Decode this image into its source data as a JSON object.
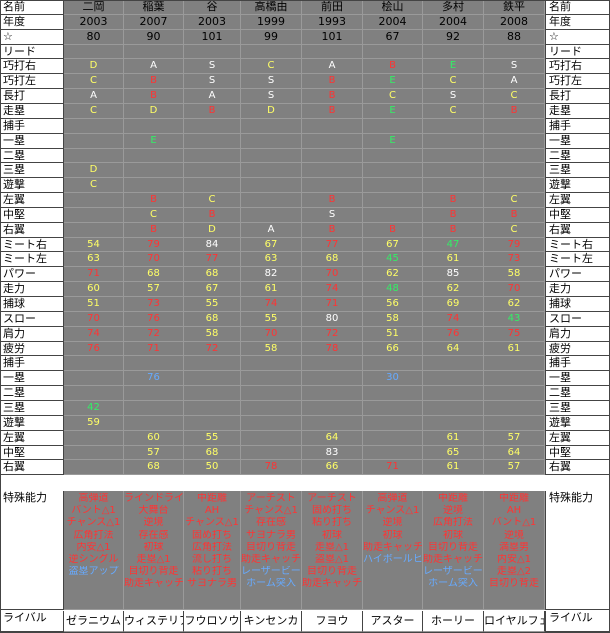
{
  "colors": {
    "W": "#ffffff",
    "Y": "#ffff66",
    "R": "#ff3333",
    "G": "#33ee66",
    "B": "#66aaff",
    "K": "#000000"
  },
  "row_labels": [
    "名前",
    "年度",
    "☆",
    "リード",
    "巧打右",
    "巧打左",
    "長打",
    "走塁",
    "捕手",
    "一塁",
    "二塁",
    "三塁",
    "遊撃",
    "左翼",
    "中堅",
    "右翼",
    "ミート右",
    "ミート左",
    "パワー",
    "走力",
    "捕球",
    "スロー",
    "肩力",
    "疲労",
    "捕手",
    "一塁",
    "二塁",
    "三塁",
    "遊撃",
    "左翼",
    "中堅",
    "右翼",
    "特殊能力",
    "ライバル"
  ],
  "players": [
    {
      "name": "二岡",
      "year": "2003",
      "star": "80",
      "grades": [
        [
          "D",
          "Y"
        ],
        [
          "C",
          "Y"
        ],
        [
          "A",
          "W"
        ],
        [
          "C",
          "Y"
        ]
      ],
      "def1": [
        [
          "",
          ""
        ],
        [
          "",
          ""
        ],
        [
          "",
          ""
        ],
        [
          "D",
          "Y"
        ],
        [
          "C",
          "Y"
        ],
        [
          "",
          ""
        ],
        [
          "",
          ""
        ],
        [
          "",
          ""
        ]
      ],
      "stats": [
        [
          "54",
          "Y"
        ],
        [
          "63",
          "Y"
        ],
        [
          "71",
          "R"
        ],
        [
          "60",
          "Y"
        ],
        [
          "51",
          "Y"
        ],
        [
          "70",
          "R"
        ],
        [
          "74",
          "R"
        ],
        [
          "76",
          "R"
        ]
      ],
      "def2": [
        [
          "",
          ""
        ],
        [
          "",
          ""
        ],
        [
          "",
          ""
        ],
        [
          "42",
          "G"
        ],
        [
          "59",
          "Y"
        ],
        [
          "",
          ""
        ],
        [
          "",
          ""
        ],
        [
          "",
          ""
        ]
      ],
      "special": [
        [
          "高弾道",
          "R"
        ],
        [
          "バント△1",
          "R"
        ],
        [
          "チャンス△1",
          "R"
        ],
        [
          "広角打法",
          "R"
        ],
        [
          "内安△1",
          "R"
        ],
        [
          "逆シングル",
          "R"
        ],
        [
          "盗塁アップ",
          "B"
        ]
      ],
      "rival": "ゼラニウム"
    },
    {
      "name": "稲葉",
      "year": "2007",
      "star": "90",
      "grades": [
        [
          "A",
          "W"
        ],
        [
          "B",
          "R"
        ],
        [
          "B",
          "R"
        ],
        [
          "D",
          "Y"
        ]
      ],
      "def1": [
        [
          "",
          ""
        ],
        [
          "E",
          "G"
        ],
        [
          "",
          ""
        ],
        [
          "",
          ""
        ],
        [
          "",
          ""
        ],
        [
          "B",
          "R"
        ],
        [
          "C",
          "Y"
        ],
        [
          "B",
          "R"
        ]
      ],
      "stats": [
        [
          "79",
          "R"
        ],
        [
          "70",
          "R"
        ],
        [
          "68",
          "Y"
        ],
        [
          "57",
          "Y"
        ],
        [
          "73",
          "R"
        ],
        [
          "76",
          "R"
        ],
        [
          "72",
          "R"
        ],
        [
          "71",
          "R"
        ]
      ],
      "def2": [
        [
          "",
          ""
        ],
        [
          "76",
          "B"
        ],
        [
          "",
          ""
        ],
        [
          "",
          ""
        ],
        [
          "",
          ""
        ],
        [
          "60",
          "Y"
        ],
        [
          "57",
          "Y"
        ],
        [
          "68",
          "Y"
        ]
      ],
      "special": [
        [
          "ラインドライブ",
          "R"
        ],
        [
          "大舞台",
          "R"
        ],
        [
          "逆境",
          "R"
        ],
        [
          "存在感",
          "R"
        ],
        [
          "初球",
          "R"
        ],
        [
          "走塁△1",
          "R"
        ],
        [
          "目切り背走",
          "R"
        ],
        [
          "助走キャッチ",
          "R"
        ]
      ],
      "rival": "ウィステリア"
    },
    {
      "name": "谷",
      "year": "2003",
      "star": "101",
      "grades": [
        [
          "S",
          "W"
        ],
        [
          "S",
          "W"
        ],
        [
          "A",
          "W"
        ],
        [
          "B",
          "R"
        ]
      ],
      "def1": [
        [
          "",
          ""
        ],
        [
          "",
          ""
        ],
        [
          "",
          ""
        ],
        [
          "",
          ""
        ],
        [
          "",
          ""
        ],
        [
          "C",
          "Y"
        ],
        [
          "B",
          "R"
        ],
        [
          "D",
          "Y"
        ]
      ],
      "stats": [
        [
          "84",
          "W"
        ],
        [
          "77",
          "R"
        ],
        [
          "68",
          "Y"
        ],
        [
          "67",
          "Y"
        ],
        [
          "55",
          "Y"
        ],
        [
          "68",
          "Y"
        ],
        [
          "58",
          "Y"
        ],
        [
          "72",
          "R"
        ]
      ],
      "def2": [
        [
          "",
          ""
        ],
        [
          "",
          ""
        ],
        [
          "",
          ""
        ],
        [
          "",
          ""
        ],
        [
          "",
          ""
        ],
        [
          "55",
          "Y"
        ],
        [
          "68",
          "Y"
        ],
        [
          "50",
          "Y"
        ]
      ],
      "special": [
        [
          "中距離",
          "R"
        ],
        [
          "AH",
          "R"
        ],
        [
          "チャンス△1",
          "R"
        ],
        [
          "固め打ち",
          "R"
        ],
        [
          "広角打法",
          "R"
        ],
        [
          "流し打ち",
          "R"
        ],
        [
          "粘り打ち",
          "R"
        ],
        [
          "サヨナラ男",
          "R"
        ]
      ],
      "rival": "フウロソウ"
    },
    {
      "name": "高橋由",
      "year": "1999",
      "star": "99",
      "grades": [
        [
          "C",
          "Y"
        ],
        [
          "S",
          "W"
        ],
        [
          "S",
          "W"
        ],
        [
          "D",
          "Y"
        ]
      ],
      "def1": [
        [
          "",
          ""
        ],
        [
          "",
          ""
        ],
        [
          "",
          ""
        ],
        [
          "",
          ""
        ],
        [
          "",
          ""
        ],
        [
          "",
          ""
        ],
        [
          "",
          ""
        ],
        [
          "A",
          "W"
        ]
      ],
      "stats": [
        [
          "67",
          "Y"
        ],
        [
          "63",
          "Y"
        ],
        [
          "82",
          "W"
        ],
        [
          "61",
          "Y"
        ],
        [
          "74",
          "R"
        ],
        [
          "55",
          "Y"
        ],
        [
          "70",
          "R"
        ],
        [
          "58",
          "Y"
        ]
      ],
      "def2": [
        [
          "",
          ""
        ],
        [
          "",
          ""
        ],
        [
          "",
          ""
        ],
        [
          "",
          ""
        ],
        [
          "",
          ""
        ],
        [
          "",
          ""
        ],
        [
          "",
          ""
        ],
        [
          "78",
          "R"
        ]
      ],
      "special": [
        [
          "アーチスト",
          "R"
        ],
        [
          "チャンス△1",
          "R"
        ],
        [
          "存在感",
          "R"
        ],
        [
          "サヨナラ男",
          "R"
        ],
        [
          "目切り背走",
          "R"
        ],
        [
          "助走キャッチ",
          "R"
        ],
        [
          "レーザービーム",
          "B"
        ],
        [
          "ホーム突入",
          "B"
        ]
      ],
      "rival": "キンセンカ"
    },
    {
      "name": "前田",
      "year": "1993",
      "star": "101",
      "grades": [
        [
          "A",
          "W"
        ],
        [
          "B",
          "R"
        ],
        [
          "B",
          "R"
        ],
        [
          "B",
          "R"
        ]
      ],
      "def1": [
        [
          "",
          ""
        ],
        [
          "",
          ""
        ],
        [
          "",
          ""
        ],
        [
          "",
          ""
        ],
        [
          "",
          ""
        ],
        [
          "B",
          "R"
        ],
        [
          "S",
          "W"
        ],
        [
          "B",
          "R"
        ]
      ],
      "stats": [
        [
          "77",
          "R"
        ],
        [
          "68",
          "Y"
        ],
        [
          "70",
          "R"
        ],
        [
          "74",
          "R"
        ],
        [
          "71",
          "R"
        ],
        [
          "80",
          "W"
        ],
        [
          "72",
          "R"
        ],
        [
          "78",
          "R"
        ]
      ],
      "def2": [
        [
          "",
          ""
        ],
        [
          "",
          ""
        ],
        [
          "",
          ""
        ],
        [
          "",
          ""
        ],
        [
          "",
          ""
        ],
        [
          "64",
          "Y"
        ],
        [
          "83",
          "W"
        ],
        [
          "66",
          "Y"
        ]
      ],
      "special": [
        [
          "アーチスト",
          "R"
        ],
        [
          "固め打ち",
          "R"
        ],
        [
          "粘り打ち",
          "R"
        ],
        [
          "初球",
          "R"
        ],
        [
          "走塁△1",
          "R"
        ],
        [
          "盗塁△1",
          "R"
        ],
        [
          "目切り背走",
          "R"
        ],
        [
          "助走キャッチ",
          "R"
        ]
      ],
      "rival": "フヨウ"
    },
    {
      "name": "桧山",
      "year": "2004",
      "star": "67",
      "grades": [
        [
          "B",
          "R"
        ],
        [
          "E",
          "G"
        ],
        [
          "C",
          "Y"
        ],
        [
          "E",
          "G"
        ]
      ],
      "def1": [
        [
          "",
          ""
        ],
        [
          "E",
          "G"
        ],
        [
          "",
          ""
        ],
        [
          "",
          ""
        ],
        [
          "",
          ""
        ],
        [
          "",
          ""
        ],
        [
          "",
          ""
        ],
        [
          "B",
          "R"
        ]
      ],
      "stats": [
        [
          "67",
          "Y"
        ],
        [
          "45",
          "G"
        ],
        [
          "62",
          "Y"
        ],
        [
          "48",
          "G"
        ],
        [
          "56",
          "Y"
        ],
        [
          "58",
          "Y"
        ],
        [
          "51",
          "Y"
        ],
        [
          "66",
          "Y"
        ]
      ],
      "def2": [
        [
          "",
          ""
        ],
        [
          "30",
          "B"
        ],
        [
          "",
          ""
        ],
        [
          "",
          ""
        ],
        [
          "",
          ""
        ],
        [
          "",
          ""
        ],
        [
          "",
          ""
        ],
        [
          "71",
          "R"
        ]
      ],
      "special": [
        [
          "高弾道",
          "R"
        ],
        [
          "チャンス△1",
          "R"
        ],
        [
          "逆境",
          "R"
        ],
        [
          "初球",
          "R"
        ],
        [
          "助走キャッチ",
          "R"
        ],
        [
          "ハイボールヒッター",
          "B"
        ]
      ],
      "rival": "アスター"
    },
    {
      "name": "多村",
      "year": "2004",
      "star": "92",
      "grades": [
        [
          "E",
          "G"
        ],
        [
          "C",
          "Y"
        ],
        [
          "S",
          "W"
        ],
        [
          "C",
          "Y"
        ]
      ],
      "def1": [
        [
          "",
          ""
        ],
        [
          "",
          ""
        ],
        [
          "",
          ""
        ],
        [
          "",
          ""
        ],
        [
          "",
          ""
        ],
        [
          "B",
          "R"
        ],
        [
          "B",
          "R"
        ],
        [
          "B",
          "R"
        ]
      ],
      "stats": [
        [
          "47",
          "G"
        ],
        [
          "61",
          "Y"
        ],
        [
          "85",
          "W"
        ],
        [
          "62",
          "Y"
        ],
        [
          "69",
          "Y"
        ],
        [
          "74",
          "R"
        ],
        [
          "76",
          "R"
        ],
        [
          "64",
          "Y"
        ]
      ],
      "def2": [
        [
          "",
          ""
        ],
        [
          "",
          ""
        ],
        [
          "",
          ""
        ],
        [
          "",
          ""
        ],
        [
          "",
          ""
        ],
        [
          "61",
          "Y"
        ],
        [
          "65",
          "Y"
        ],
        [
          "61",
          "Y"
        ]
      ],
      "special": [
        [
          "中距離",
          "R"
        ],
        [
          "逆境",
          "R"
        ],
        [
          "広角打法",
          "R"
        ],
        [
          "初球",
          "R"
        ],
        [
          "目切り背走",
          "R"
        ],
        [
          "助走キャッチ",
          "R"
        ],
        [
          "レーザービーム",
          "B"
        ],
        [
          "ホーム突入",
          "B"
        ]
      ],
      "rival": "ホーリー"
    },
    {
      "name": "鉄平",
      "year": "2008",
      "star": "88",
      "grades": [
        [
          "S",
          "W"
        ],
        [
          "A",
          "W"
        ],
        [
          "C",
          "Y"
        ],
        [
          "B",
          "R"
        ]
      ],
      "def1": [
        [
          "",
          ""
        ],
        [
          "",
          ""
        ],
        [
          "",
          ""
        ],
        [
          "",
          ""
        ],
        [
          "",
          ""
        ],
        [
          "C",
          "Y"
        ],
        [
          "B",
          "R"
        ],
        [
          "C",
          "Y"
        ]
      ],
      "stats": [
        [
          "79",
          "R"
        ],
        [
          "73",
          "R"
        ],
        [
          "58",
          "Y"
        ],
        [
          "70",
          "R"
        ],
        [
          "62",
          "Y"
        ],
        [
          "43",
          "G"
        ],
        [
          "75",
          "R"
        ],
        [
          "61",
          "Y"
        ]
      ],
      "def2": [
        [
          "",
          ""
        ],
        [
          "",
          ""
        ],
        [
          "",
          ""
        ],
        [
          "",
          ""
        ],
        [
          "",
          ""
        ],
        [
          "57",
          "Y"
        ],
        [
          "64",
          "Y"
        ],
        [
          "57",
          "Y"
        ]
      ],
      "special": [
        [
          "中距離",
          "R"
        ],
        [
          "AH",
          "R"
        ],
        [
          "バント△1",
          "R"
        ],
        [
          "逆境",
          "R"
        ],
        [
          "満塁男",
          "R"
        ],
        [
          "内安△1",
          "R"
        ],
        [
          "走塁△2",
          "R"
        ],
        [
          "目切り背走",
          "R"
        ]
      ],
      "rival": "ロイヤルフェーン"
    }
  ]
}
